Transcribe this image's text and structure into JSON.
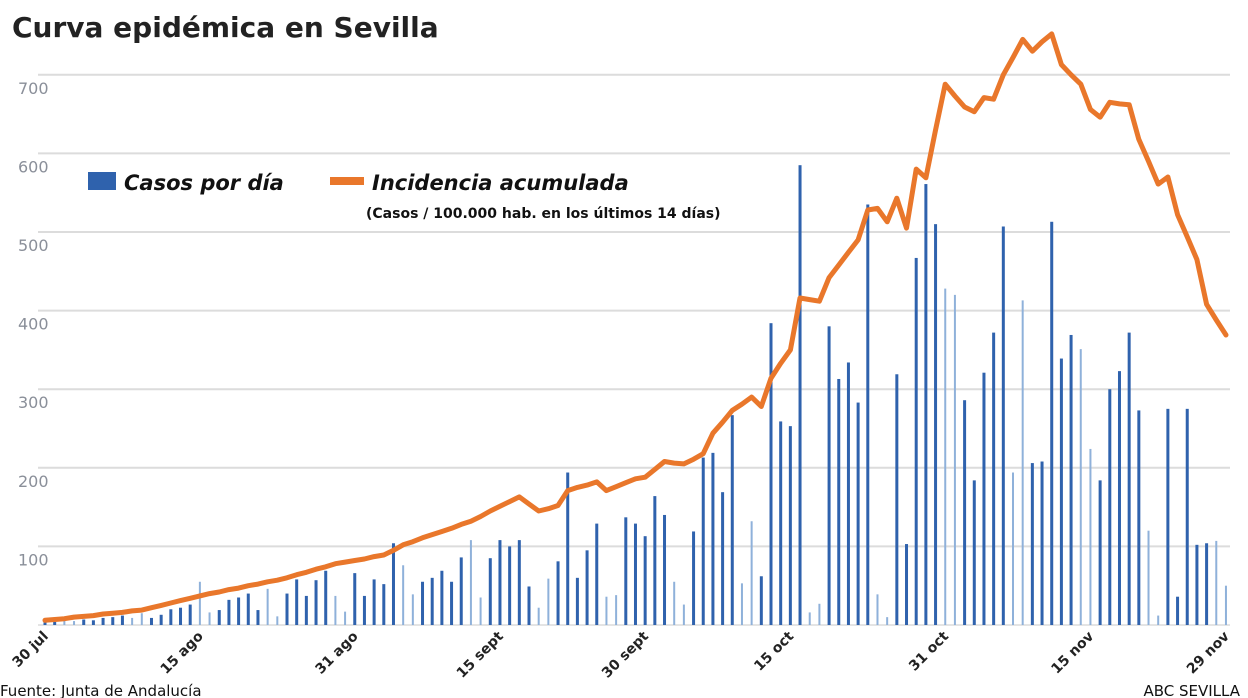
{
  "chart_data": {
    "type": "bar+line",
    "title": "Curva epidémica en Sevilla",
    "source": "Fuente: Junta de Andalucía",
    "credit": "ABC SEVILLA",
    "legend": {
      "bars": "Casos por día",
      "line": "Incidencia acumulada",
      "line_note": "(Casos / 100.000 hab. en los últimos 14 días)",
      "placement": "top-left"
    },
    "ylim": [
      0,
      750
    ],
    "yticks": [
      "100",
      "200",
      "300",
      "400",
      "500",
      "600",
      "700"
    ],
    "ytick_values": [
      100,
      200,
      300,
      400,
      500,
      600,
      700
    ],
    "grid": true,
    "xticks": [
      {
        "label": "30 jul",
        "index": 0
      },
      {
        "label": "15 ago",
        "index": 16
      },
      {
        "label": "31 ago",
        "index": 32
      },
      {
        "label": "15 sept",
        "index": 47
      },
      {
        "label": "30 sept",
        "index": 62
      },
      {
        "label": "15 oct",
        "index": 77
      },
      {
        "label": "31 oct",
        "index": 93
      },
      {
        "label": "15 nov",
        "index": 108
      },
      {
        "label": "29 nov",
        "index": 122
      }
    ],
    "dates": [
      "30 jul",
      "31 jul",
      "1 ago",
      "2 ago",
      "3 ago",
      "4 ago",
      "5 ago",
      "6 ago",
      "7 ago",
      "8 ago",
      "9 ago",
      "10 ago",
      "11 ago",
      "12 ago",
      "13 ago",
      "14 ago",
      "15 ago",
      "16 ago",
      "17 ago",
      "18 ago",
      "19 ago",
      "20 ago",
      "21 ago",
      "22 ago",
      "23 ago",
      "24 ago",
      "25 ago",
      "26 ago",
      "27 ago",
      "28 ago",
      "29 ago",
      "30 ago",
      "31 ago",
      "1 sept",
      "2 sept",
      "3 sept",
      "4 sept",
      "5 sept",
      "6 sept",
      "7 sept",
      "8 sept",
      "9 sept",
      "10 sept",
      "11 sept",
      "12 sept",
      "13 sept",
      "14 sept",
      "15 sept",
      "16 sept",
      "17 sept",
      "18 sept",
      "19 sept",
      "20 sept",
      "21 sept",
      "22 sept",
      "23 sept",
      "24 sept",
      "25 sept",
      "26 sept",
      "27 sept",
      "28 sept",
      "29 sept",
      "30 sept",
      "1 oct",
      "2 oct",
      "3 oct",
      "4 oct",
      "5 oct",
      "6 oct",
      "7 oct",
      "8 oct",
      "9 oct",
      "10 oct",
      "11 oct",
      "12 oct",
      "13 oct",
      "14 oct",
      "15 oct",
      "16 oct",
      "17 oct",
      "18 oct",
      "19 oct",
      "20 oct",
      "21 oct",
      "22 oct",
      "23 oct",
      "24 oct",
      "25 oct",
      "26 oct",
      "27 oct",
      "28 oct",
      "29 oct",
      "30 oct",
      "31 oct",
      "1 nov",
      "2 nov",
      "3 nov",
      "4 nov",
      "5 nov",
      "6 nov",
      "7 nov",
      "8 nov",
      "9 nov",
      "10 nov",
      "11 nov",
      "12 nov",
      "13 nov",
      "14 nov",
      "15 nov",
      "16 nov",
      "17 nov",
      "18 nov",
      "19 nov",
      "20 nov",
      "21 nov",
      "22 nov",
      "23 nov",
      "24 nov",
      "25 nov",
      "26 nov",
      "27 nov",
      "28 nov",
      "29 nov"
    ],
    "series": [
      {
        "name": "Casos por día",
        "type": "bar",
        "color": "#2f62ad",
        "weekend_color": "#8fb1da",
        "values": [
          5,
          4,
          6,
          5,
          7,
          6,
          9,
          10,
          12,
          9,
          15,
          9,
          13,
          20,
          22,
          26,
          55,
          16,
          19,
          32,
          35,
          40,
          19,
          46,
          11,
          40,
          58,
          37,
          57,
          69,
          37,
          17,
          66,
          37,
          58,
          52,
          104,
          76,
          39,
          55,
          60,
          69,
          55,
          86,
          108,
          35,
          85,
          108,
          100,
          108,
          49,
          22,
          59,
          81,
          194,
          60,
          95,
          129,
          36,
          38,
          137,
          129,
          113,
          164,
          140,
          55,
          26,
          119,
          213,
          219,
          169,
          267,
          53,
          132,
          62,
          384,
          259,
          253,
          585,
          16,
          27,
          380,
          313,
          334,
          283,
          535,
          39,
          10,
          319,
          103,
          467,
          561,
          510,
          428,
          420,
          286,
          184,
          321,
          372,
          507,
          194,
          413,
          206,
          208,
          513,
          339,
          369,
          351,
          224,
          184,
          300,
          323,
          372,
          273,
          120,
          12,
          275,
          36,
          275,
          102,
          104,
          107,
          50
        ]
      },
      {
        "name": "Incidencia acumulada",
        "type": "line",
        "color": "#e9772b",
        "values": [
          6,
          7,
          8,
          10,
          11,
          12,
          14,
          15,
          16,
          18,
          19,
          22,
          25,
          28,
          31,
          34,
          37,
          40,
          42,
          45,
          47,
          50,
          52,
          55,
          57,
          60,
          64,
          67,
          71,
          74,
          78,
          80,
          82,
          84,
          87,
          89,
          95,
          102,
          106,
          111,
          115,
          119,
          123,
          128,
          132,
          138,
          145,
          151,
          157,
          163,
          154,
          145,
          148,
          152,
          171,
          175,
          178,
          182,
          171,
          176,
          181,
          186,
          188,
          198,
          208,
          206,
          205,
          211,
          218,
          244,
          258,
          273,
          281,
          290,
          278,
          314,
          333,
          350,
          416,
          414,
          412,
          442,
          458,
          474,
          490,
          528,
          530,
          513,
          543,
          505,
          580,
          569,
          630,
          688,
          673,
          659,
          653,
          671,
          669,
          700,
          722,
          745,
          730,
          742,
          752,
          713,
          700,
          688,
          656,
          646,
          665,
          663,
          662,
          618,
          590,
          561,
          570,
          522,
          494,
          465,
          408,
          388,
          369
        ]
      }
    ]
  }
}
